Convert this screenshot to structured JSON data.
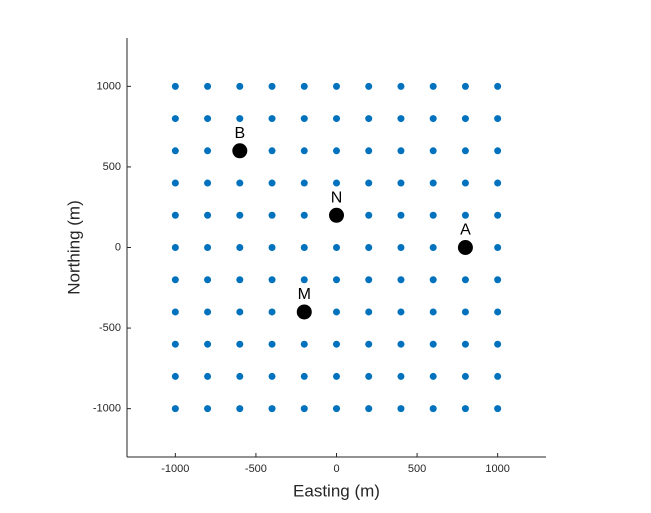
{
  "chart_data": {
    "type": "scatter",
    "xlabel": "Easting (m)",
    "ylabel": "Northing (m)",
    "xlim": [
      -1300,
      1300
    ],
    "ylim": [
      -1300,
      1300
    ],
    "xticks": [
      -1000,
      -500,
      0,
      500,
      1000
    ],
    "yticks": [
      -1000,
      -500,
      0,
      500,
      1000
    ],
    "series": [
      {
        "color": "#0072bd",
        "size": 3.5,
        "x": [
          -1000,
          -800,
          -600,
          -400,
          -200,
          0,
          200,
          400,
          600,
          800,
          1000,
          -1000,
          -800,
          -600,
          -400,
          -200,
          0,
          200,
          400,
          600,
          800,
          1000,
          -1000,
          -800,
          -600,
          -400,
          -200,
          0,
          200,
          400,
          600,
          800,
          1000,
          -1000,
          -800,
          -600,
          -400,
          -200,
          0,
          200,
          400,
          600,
          800,
          1000,
          -1000,
          -800,
          -600,
          -400,
          -200,
          0,
          200,
          400,
          600,
          800,
          1000,
          -1000,
          -800,
          -600,
          -400,
          -200,
          0,
          200,
          400,
          600,
          800,
          1000,
          -1000,
          -800,
          -600,
          -400,
          -200,
          0,
          200,
          400,
          600,
          800,
          1000,
          -1000,
          -800,
          -600,
          -400,
          -200,
          0,
          200,
          400,
          600,
          800,
          1000,
          -1000,
          -800,
          -600,
          -400,
          -200,
          0,
          200,
          400,
          600,
          800,
          1000,
          -1000,
          -800,
          -600,
          -400,
          -200,
          0,
          200,
          400,
          600,
          800,
          1000,
          -1000,
          -800,
          -600,
          -400,
          -200,
          0,
          200,
          400,
          600,
          800,
          1000
        ],
        "values": [
          1000,
          1000,
          1000,
          1000,
          1000,
          1000,
          1000,
          1000,
          1000,
          1000,
          1000,
          800,
          800,
          800,
          800,
          800,
          800,
          800,
          800,
          800,
          800,
          800,
          600,
          600,
          600,
          600,
          600,
          600,
          600,
          600,
          600,
          600,
          600,
          400,
          400,
          400,
          400,
          400,
          400,
          400,
          400,
          400,
          400,
          400,
          200,
          200,
          200,
          200,
          200,
          200,
          200,
          200,
          200,
          200,
          200,
          0,
          0,
          0,
          0,
          0,
          0,
          0,
          0,
          0,
          0,
          0,
          -200,
          -200,
          -200,
          -200,
          -200,
          -200,
          -200,
          -200,
          -200,
          -200,
          -200,
          -400,
          -400,
          -400,
          -400,
          -400,
          -400,
          -400,
          -400,
          -400,
          -400,
          -400,
          -600,
          -600,
          -600,
          -600,
          -600,
          -600,
          -600,
          -600,
          -600,
          -600,
          -600,
          -800,
          -800,
          -800,
          -800,
          -800,
          -800,
          -800,
          -800,
          -800,
          -800,
          -800,
          -1000,
          -1000,
          -1000,
          -1000,
          -1000,
          -1000,
          -1000,
          -1000,
          -1000,
          -1000,
          -1000
        ]
      },
      {
        "color": "#000000",
        "size": 7.5,
        "x": [
          800,
          -600,
          -200,
          0
        ],
        "values": [
          0,
          600,
          -400,
          200
        ],
        "labels": [
          "A",
          "B",
          "M",
          "N"
        ]
      }
    ]
  }
}
